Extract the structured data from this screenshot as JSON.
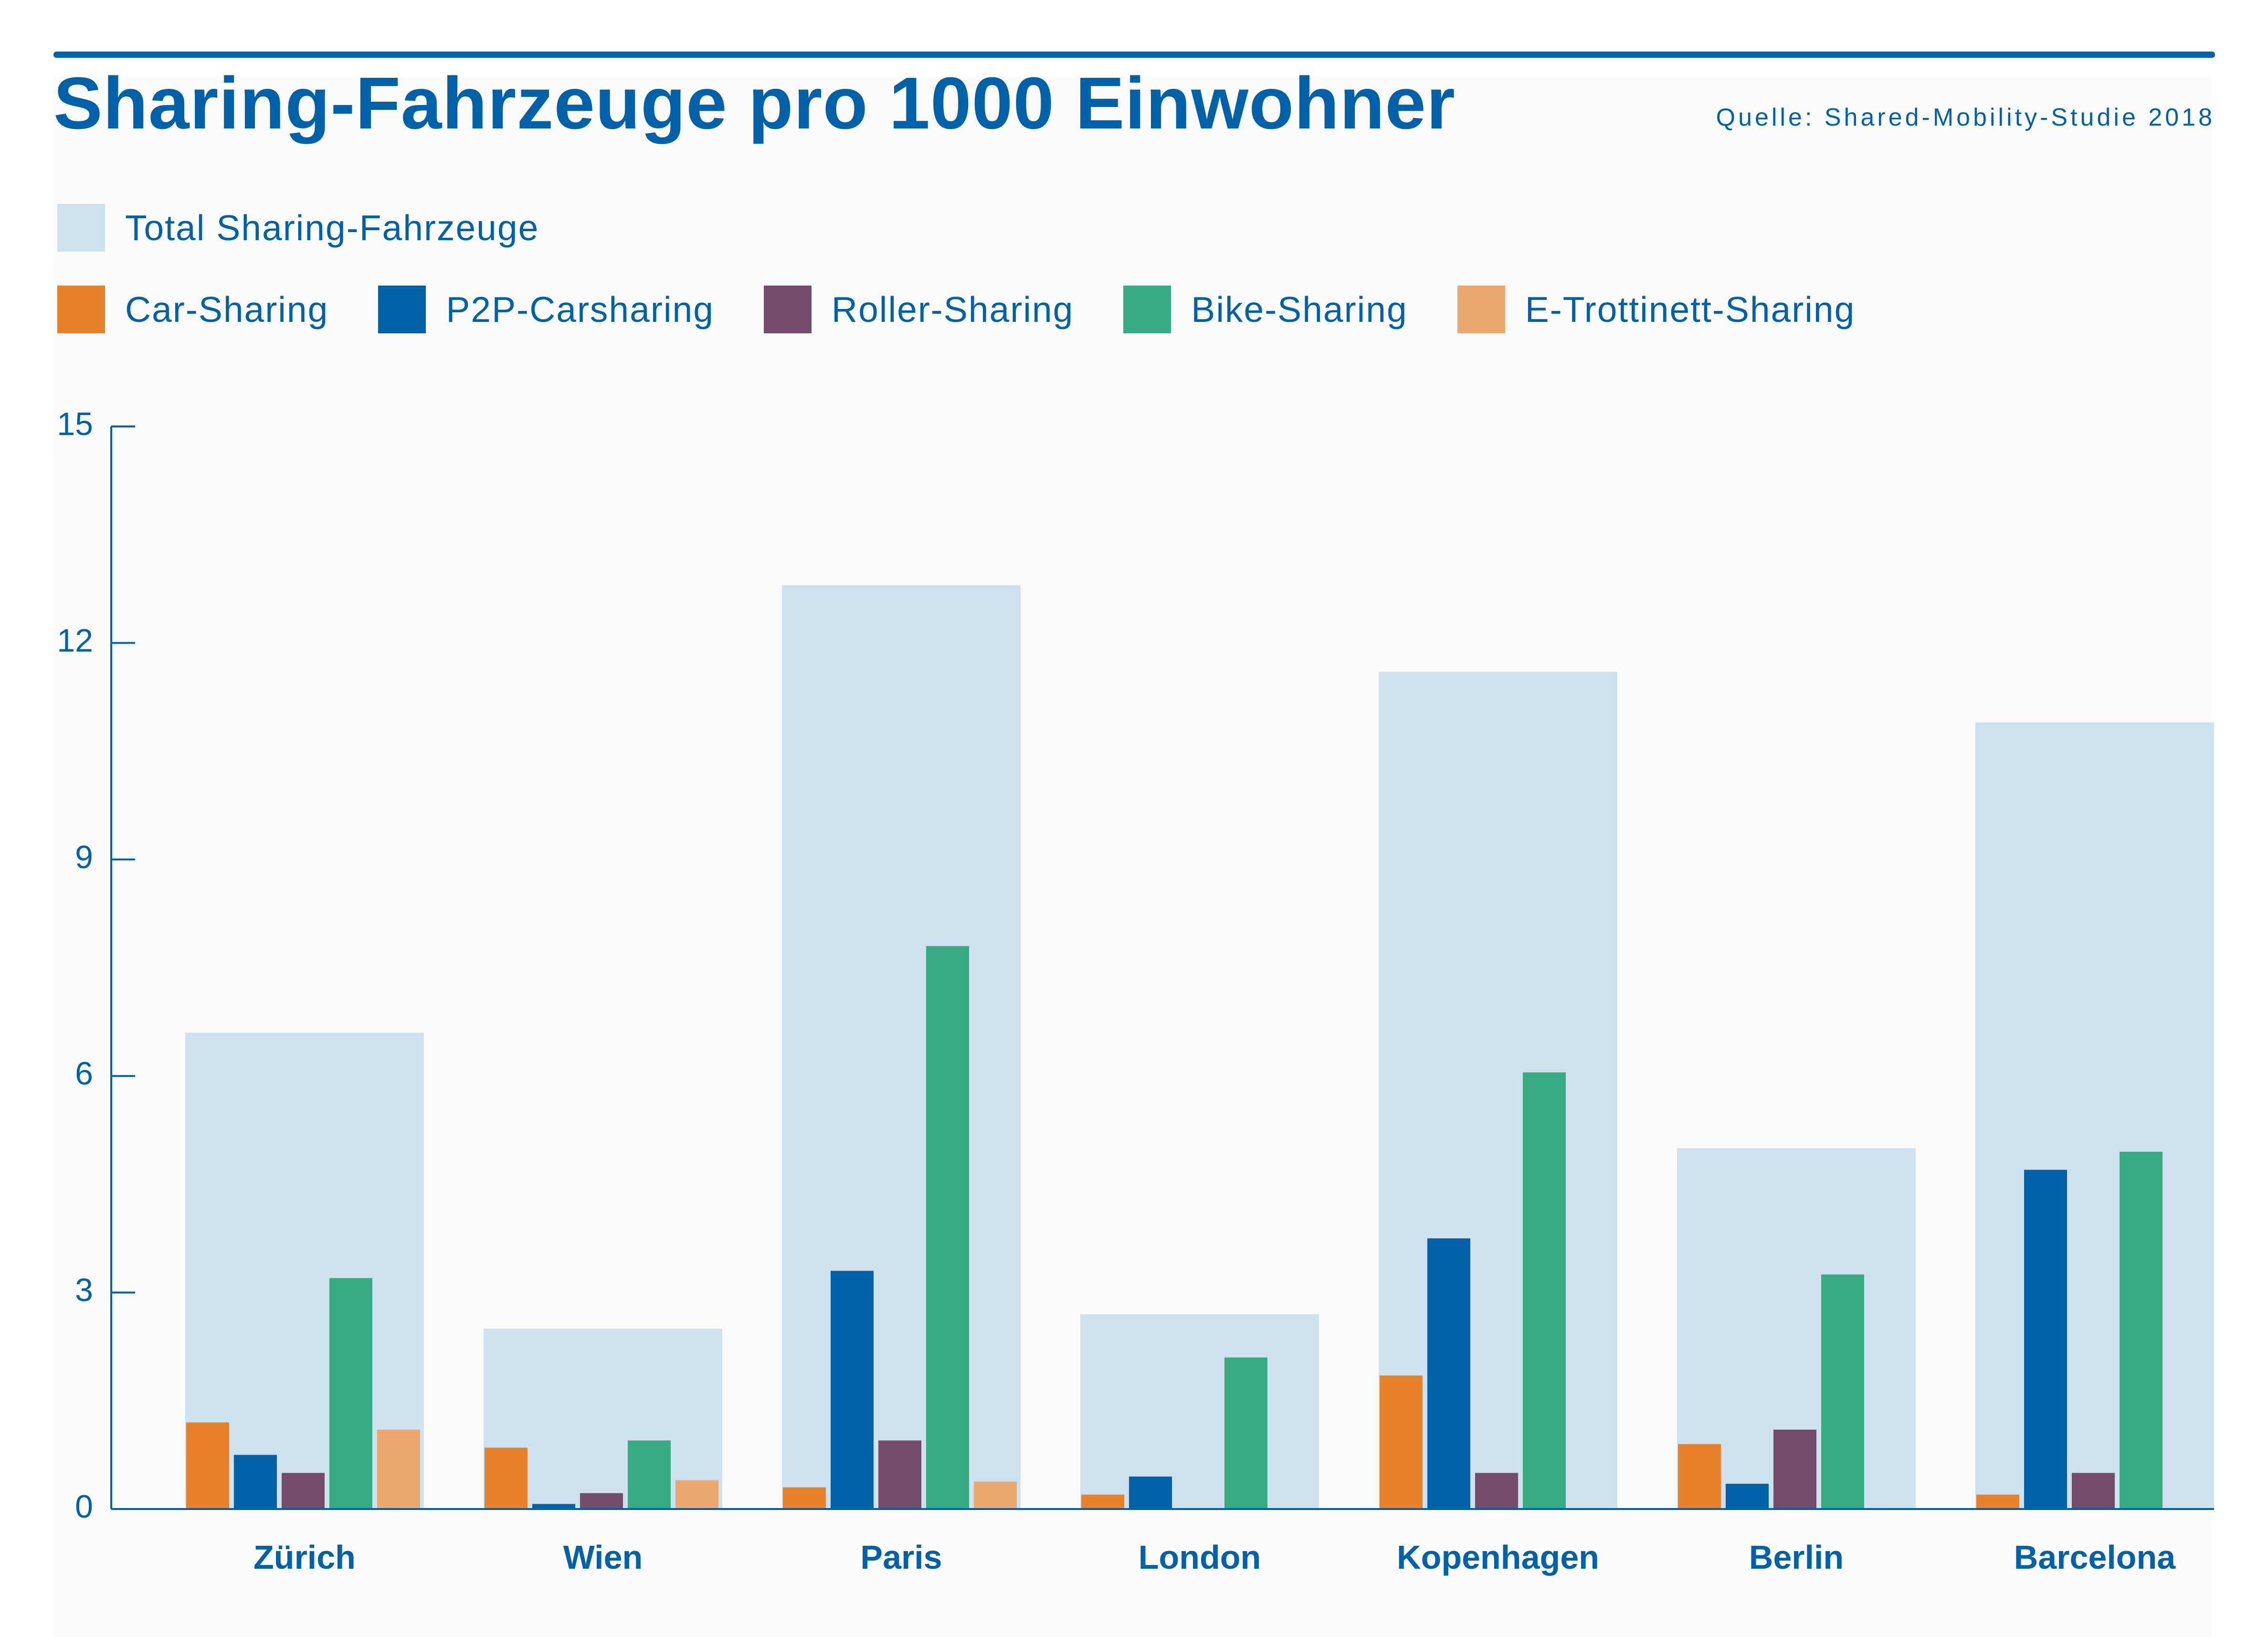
{
  "header": {
    "title": "Sharing-Fahrzeuge pro 1000 Einwohner",
    "source": "Quelle: Shared-Mobility-Studie 2018"
  },
  "legend": {
    "total": {
      "label": "Total Sharing-Fahrzeuge",
      "color": "#cee1ee"
    },
    "series": [
      {
        "label": "Car-Sharing",
        "color": "#e8822a"
      },
      {
        "label": "P2P-Carsharing",
        "color": "#0061a8"
      },
      {
        "label": "Roller-Sharing",
        "color": "#744b6d"
      },
      {
        "label": "Bike-Sharing",
        "color": "#37ac82"
      },
      {
        "label": "E-Trottinett-Sharing",
        "color": "#eca86d"
      }
    ]
  },
  "chart_data": {
    "type": "bar",
    "title": "Sharing-Fahrzeuge pro 1000 Einwohner",
    "xlabel": "",
    "ylabel": "",
    "ylim": [
      0,
      15
    ],
    "yticks": [
      0,
      3,
      6,
      9,
      12,
      15
    ],
    "categories": [
      "Zürich",
      "Wien",
      "Paris",
      "London",
      "Kopenhagen",
      "Berlin",
      "Barcelona"
    ],
    "totals": {
      "name": "Total Sharing-Fahrzeuge",
      "values": [
        6.6,
        2.5,
        12.8,
        2.7,
        11.6,
        5.0,
        10.9
      ]
    },
    "series": [
      {
        "name": "Car-Sharing",
        "values": [
          1.2,
          0.85,
          0.3,
          0.2,
          1.85,
          0.9,
          0.2
        ]
      },
      {
        "name": "P2P-Carsharing",
        "values": [
          0.75,
          0.07,
          3.3,
          0.45,
          3.75,
          0.35,
          4.7
        ]
      },
      {
        "name": "Roller-Sharing",
        "values": [
          0.5,
          0.22,
          0.95,
          0,
          0.5,
          1.1,
          0.5
        ]
      },
      {
        "name": "Bike-Sharing",
        "values": [
          3.2,
          0.95,
          7.8,
          2.1,
          6.05,
          3.25,
          4.95
        ]
      },
      {
        "name": "E-Trottinett-Sharing",
        "values": [
          1.1,
          0.4,
          0.38,
          0,
          0,
          0,
          0
        ]
      }
    ],
    "legend_position": "top-left",
    "grid": false
  }
}
